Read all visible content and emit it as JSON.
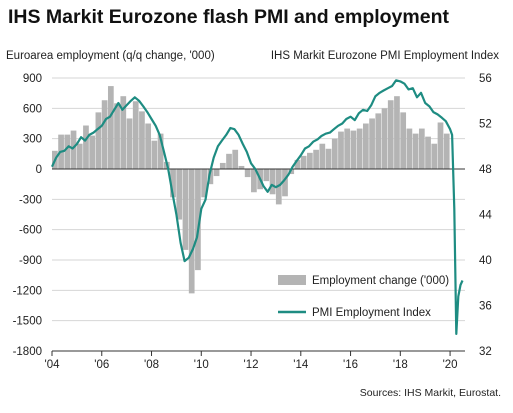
{
  "chart_data": {
    "type": "bar",
    "title": "IHS Markit Eurozone flash PMI and employment",
    "left_axis_title": "Euroarea employment  (q/q change, '000)",
    "right_axis_title": "IHS Markit Eurozone PMI Employment  Index",
    "source": "Sources: IHS Markit, Eurostat.",
    "left_axis": {
      "min": -1800,
      "max": 900,
      "ticks": [
        900,
        600,
        300,
        0,
        -300,
        -600,
        -900,
        -1200,
        -1500,
        -1800
      ]
    },
    "right_axis": {
      "min": 32,
      "max": 56,
      "ticks": [
        56,
        52,
        48,
        44,
        40,
        36,
        32
      ]
    },
    "x_axis": {
      "min": 2004,
      "max": 2020.6,
      "ticks": [
        2004,
        2006,
        2008,
        2010,
        2012,
        2014,
        2016,
        2018,
        2020
      ],
      "tick_labels": [
        "'04",
        "'06",
        "'08",
        "'10",
        "'12",
        "'14",
        "'16",
        "'18",
        "'20"
      ]
    },
    "grid": true,
    "legend": {
      "position": "bottom-right",
      "entries": [
        {
          "label": "Employment change ('000)",
          "color": "#b4b4b4",
          "kind": "bar"
        },
        {
          "label": "PMI Employment Index",
          "color": "#1e8c82",
          "kind": "line"
        }
      ]
    },
    "series": [
      {
        "name": "Employment change ('000)",
        "axis": "left",
        "kind": "bar",
        "color": "#b4b4b4",
        "x": [
          2004.0,
          2004.25,
          2004.5,
          2004.75,
          2005.0,
          2005.25,
          2005.5,
          2005.75,
          2006.0,
          2006.25,
          2006.5,
          2006.75,
          2007.0,
          2007.25,
          2007.5,
          2007.75,
          2008.0,
          2008.25,
          2008.5,
          2008.75,
          2009.0,
          2009.25,
          2009.5,
          2009.75,
          2010.0,
          2010.25,
          2010.5,
          2010.75,
          2011.0,
          2011.25,
          2011.5,
          2011.75,
          2012.0,
          2012.25,
          2012.5,
          2012.75,
          2013.0,
          2013.25,
          2013.5,
          2013.75,
          2014.0,
          2014.25,
          2014.5,
          2014.75,
          2015.0,
          2015.25,
          2015.5,
          2015.75,
          2016.0,
          2016.25,
          2016.5,
          2016.75,
          2017.0,
          2017.25,
          2017.5,
          2017.75,
          2018.0,
          2018.25,
          2018.5,
          2018.75,
          2019.0,
          2019.25,
          2019.5,
          2019.75
        ],
        "values": [
          180,
          340,
          340,
          380,
          250,
          430,
          330,
          560,
          680,
          820,
          650,
          720,
          500,
          670,
          570,
          450,
          280,
          350,
          70,
          -280,
          -500,
          -800,
          -1230,
          -1000,
          -280,
          -150,
          -70,
          60,
          150,
          190,
          30,
          -80,
          -230,
          -200,
          -120,
          -250,
          -350,
          -270,
          -50,
          90,
          130,
          160,
          190,
          250,
          200,
          300,
          370,
          400,
          380,
          400,
          450,
          500,
          550,
          600,
          680,
          720,
          560,
          400,
          350,
          400,
          320,
          250,
          460,
          350
        ]
      },
      {
        "name": "PMI Employment Index",
        "axis": "right",
        "kind": "line",
        "color": "#1e8c82",
        "x": [
          2004.0,
          2004.17,
          2004.33,
          2004.5,
          2004.67,
          2004.83,
          2005.0,
          2005.17,
          2005.33,
          2005.5,
          2005.67,
          2005.83,
          2006.0,
          2006.17,
          2006.33,
          2006.5,
          2006.67,
          2006.83,
          2007.0,
          2007.17,
          2007.33,
          2007.5,
          2007.67,
          2007.83,
          2008.0,
          2008.17,
          2008.33,
          2008.5,
          2008.67,
          2008.83,
          2009.0,
          2009.17,
          2009.33,
          2009.5,
          2009.67,
          2009.83,
          2010.0,
          2010.17,
          2010.33,
          2010.5,
          2010.67,
          2010.83,
          2011.0,
          2011.17,
          2011.33,
          2011.5,
          2011.67,
          2011.83,
          2012.0,
          2012.17,
          2012.33,
          2012.5,
          2012.67,
          2012.83,
          2013.0,
          2013.17,
          2013.33,
          2013.5,
          2013.67,
          2013.83,
          2014.0,
          2014.17,
          2014.33,
          2014.5,
          2014.67,
          2014.83,
          2015.0,
          2015.17,
          2015.33,
          2015.5,
          2015.67,
          2015.83,
          2016.0,
          2016.17,
          2016.33,
          2016.5,
          2016.67,
          2016.83,
          2017.0,
          2017.17,
          2017.33,
          2017.5,
          2017.67,
          2017.83,
          2018.0,
          2018.17,
          2018.33,
          2018.5,
          2018.67,
          2018.83,
          2019.0,
          2019.17,
          2019.33,
          2019.5,
          2019.67,
          2019.83,
          2020.0,
          2020.08,
          2020.17,
          2020.25,
          2020.33,
          2020.42,
          2020.5
        ],
        "values": [
          48.2,
          49.0,
          49.5,
          49.6,
          50.0,
          49.8,
          50.2,
          50.8,
          50.5,
          51.0,
          51.2,
          51.5,
          51.8,
          52.4,
          52.6,
          53.2,
          53.8,
          53.2,
          53.6,
          54.0,
          54.3,
          54.0,
          53.5,
          53.0,
          52.4,
          51.8,
          51.0,
          49.5,
          48.0,
          46.0,
          44.0,
          41.5,
          39.9,
          40.2,
          41.0,
          42.0,
          44.5,
          45.3,
          47.5,
          49.0,
          50.0,
          50.5,
          51.0,
          51.6,
          51.5,
          51.0,
          50.2,
          49.5,
          48.5,
          48.0,
          47.3,
          46.5,
          46.0,
          46.6,
          46.4,
          46.6,
          47.0,
          47.5,
          48.2,
          48.7,
          49.2,
          49.8,
          50.0,
          50.4,
          50.6,
          50.9,
          51.1,
          51.2,
          51.5,
          51.8,
          52.0,
          52.4,
          52.6,
          52.3,
          52.9,
          53.2,
          53.1,
          53.6,
          54.4,
          54.7,
          54.9,
          55.1,
          55.3,
          55.8,
          55.7,
          55.5,
          55.0,
          55.1,
          54.3,
          54.7,
          53.8,
          53.5,
          53.0,
          52.8,
          52.5,
          52.2,
          51.5,
          51.0,
          44.5,
          33.5,
          36.8,
          37.8,
          38.2
        ]
      }
    ]
  }
}
